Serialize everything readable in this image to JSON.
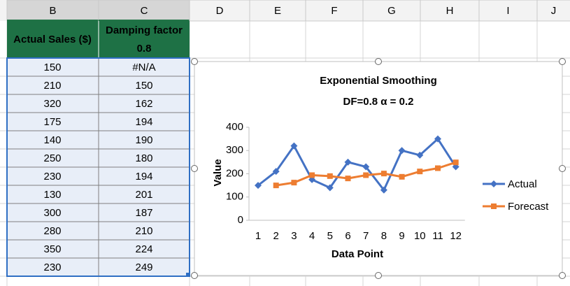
{
  "column_headers": [
    "B",
    "C",
    "D",
    "E",
    "F",
    "G",
    "H",
    "I",
    "J"
  ],
  "table": {
    "header": [
      "Actual Sales ($)",
      "Damping factor",
      "0.8"
    ],
    "rows": [
      [
        150,
        "#N/A"
      ],
      [
        210,
        150
      ],
      [
        320,
        162
      ],
      [
        175,
        194
      ],
      [
        140,
        190
      ],
      [
        250,
        180
      ],
      [
        230,
        194
      ],
      [
        130,
        201
      ],
      [
        300,
        187
      ],
      [
        280,
        210
      ],
      [
        350,
        224
      ],
      [
        230,
        249
      ]
    ]
  },
  "chart_data": {
    "type": "line",
    "title": "Exponential Smoothing",
    "subtitle": "DF=0.8 α = 0.2",
    "x_label": "Data Point",
    "y_label": "Value",
    "categories": [
      1,
      2,
      3,
      4,
      5,
      6,
      7,
      8,
      9,
      10,
      11,
      12
    ],
    "series": [
      {
        "name": "Actual",
        "color": "#4472c4",
        "marker": "diamond",
        "values": [
          150,
          210,
          320,
          175,
          140,
          250,
          230,
          130,
          300,
          280,
          350,
          230
        ]
      },
      {
        "name": "Forecast",
        "color": "#ed7d31",
        "marker": "square",
        "values": [
          null,
          150,
          162,
          194,
          190,
          180,
          194,
          201,
          187,
          210,
          224,
          249
        ]
      }
    ],
    "ylim": [
      0,
      400
    ],
    "yticks": [
      0,
      100,
      200,
      300,
      400
    ],
    "grid": false,
    "legend": "right"
  }
}
